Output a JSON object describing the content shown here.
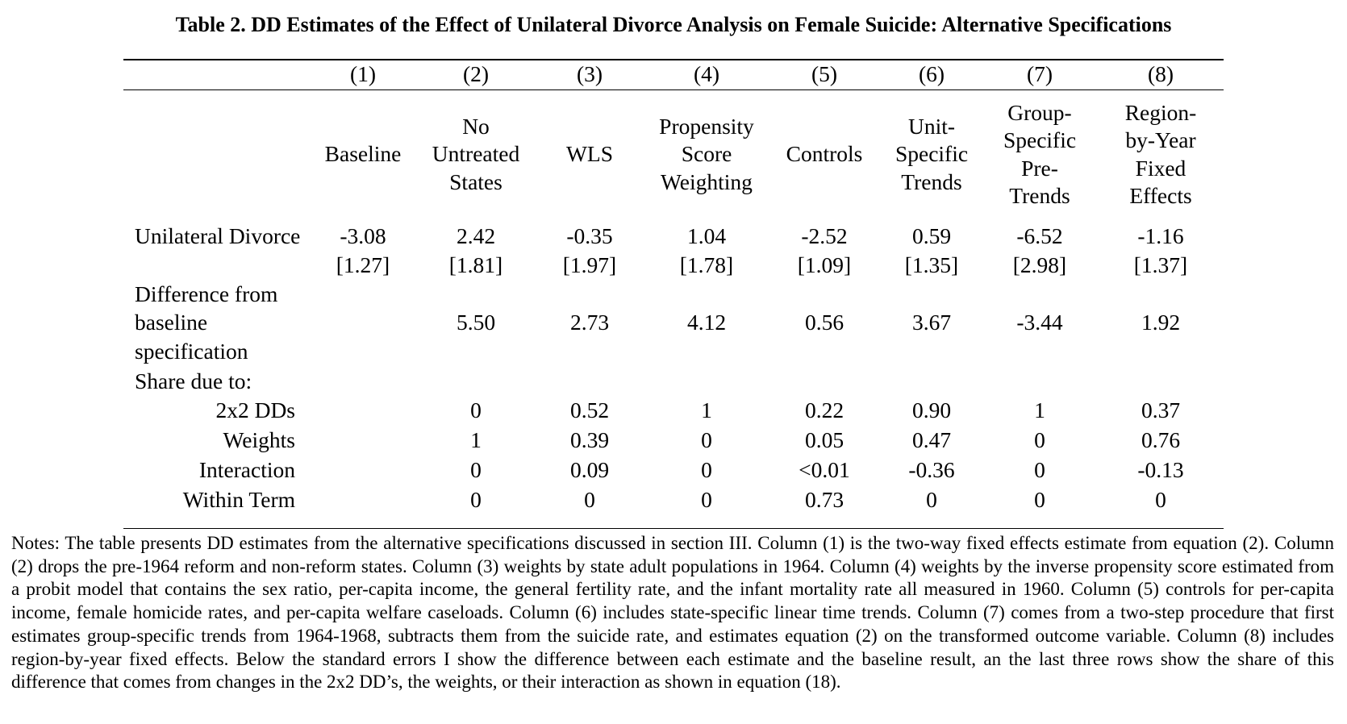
{
  "title": "Table 2. DD Estimates of the Effect of Unilateral Divorce Analysis on Female Suicide: Alternative Specifications",
  "columns": [
    {
      "number": "(1)",
      "label": [
        "Baseline"
      ]
    },
    {
      "number": "(2)",
      "label": [
        "No",
        "Untreated",
        "States"
      ]
    },
    {
      "number": "(3)",
      "label": [
        "WLS"
      ]
    },
    {
      "number": "(4)",
      "label": [
        "Propensity",
        "Score",
        "Weighting"
      ]
    },
    {
      "number": "(5)",
      "label": [
        "Controls"
      ]
    },
    {
      "number": "(6)",
      "label": [
        "Unit-",
        "Specific",
        "Trends"
      ]
    },
    {
      "number": "(7)",
      "label": [
        "Group-",
        "Specific",
        "Pre-",
        "Trends"
      ]
    },
    {
      "number": "(8)",
      "label": [
        "Region-",
        "by-Year",
        "Fixed",
        "Effects"
      ]
    }
  ],
  "rows": {
    "estimate": {
      "label": "Unilateral Divorce",
      "values": [
        "-3.08",
        "2.42",
        "-0.35",
        "1.04",
        "-2.52",
        "0.59",
        "-6.52",
        "-1.16"
      ]
    },
    "std_errors": [
      "[1.27]",
      "[1.81]",
      "[1.97]",
      "[1.78]",
      "[1.09]",
      "[1.35]",
      "[2.98]",
      "[1.37]"
    ],
    "difference": {
      "label_lines": [
        "Difference from",
        "baseline",
        "specification"
      ],
      "values": [
        "",
        "5.50",
        "2.73",
        "4.12",
        "0.56",
        "3.67",
        "-3.44",
        "1.92"
      ]
    },
    "share_label": "Share due to:",
    "shares": [
      {
        "label": "2x2 DDs",
        "values": [
          "",
          "0",
          "0.52",
          "1",
          "0.22",
          "0.90",
          "1",
          "0.37"
        ]
      },
      {
        "label": "Weights",
        "values": [
          "",
          "1",
          "0.39",
          "0",
          "0.05",
          "0.47",
          "0",
          "0.76"
        ]
      },
      {
        "label": "Interaction",
        "values": [
          "",
          "0",
          "0.09",
          "0",
          "<0.01",
          "-0.36",
          "0",
          "-0.13"
        ]
      },
      {
        "label": "Within Term",
        "values": [
          "",
          "0",
          "0",
          "0",
          "0.73",
          "0",
          "0",
          "0"
        ]
      }
    ]
  },
  "notes": "Notes: The table presents DD estimates from the alternative specifications discussed in section III. Column (1) is the two-way fixed effects estimate from equation (2). Column (2) drops the pre-1964 reform and non-reform states. Column (3) weights by state adult populations in 1964. Column (4) weights by the inverse propensity score estimated from a probit model that contains the sex ratio, per-capita income, the general fertility rate, and the infant mortality rate all measured in 1960. Column (5) controls for per-capita income, female homicide rates, and per-capita welfare caseloads. Column (6) includes state-specific linear time trends. Column (7) comes from a two-step procedure that first estimates group-specific trends from 1964-1968, subtracts them from the suicide rate, and estimates equation (2) on the transformed outcome variable. Column (8) includes region-by-year fixed effects. Below the standard errors I show the difference between each estimate and the baseline result, an the last three rows show the share of this difference that comes from changes in the 2x2 DD’s, the weights, or their interaction as shown in equation (18)."
}
